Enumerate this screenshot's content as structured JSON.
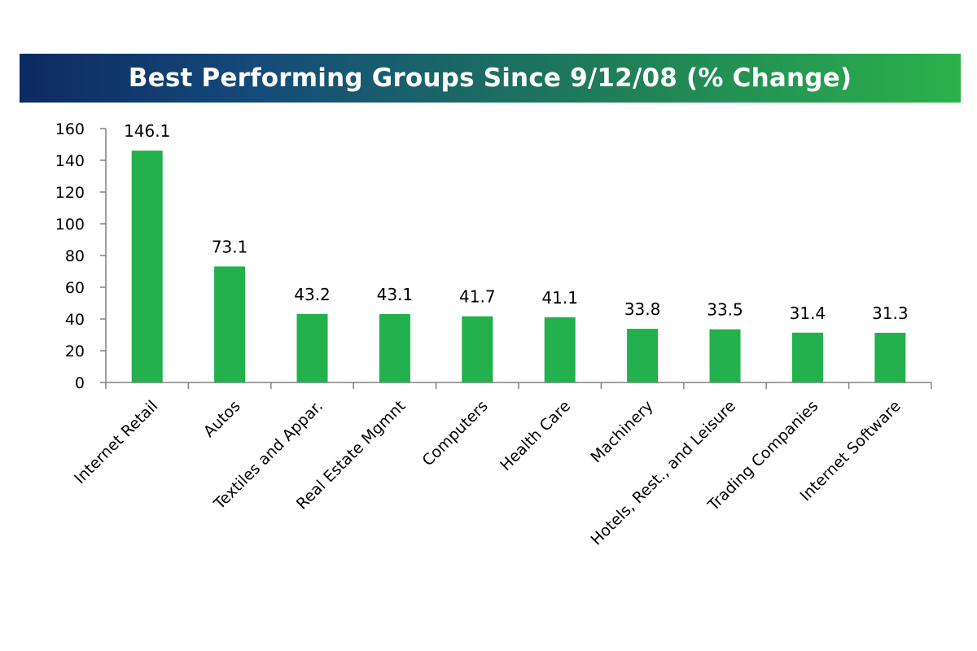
{
  "chart_data": {
    "type": "bar",
    "title": "Best Performing Groups Since 9/12/08 (% Change)",
    "xlabel": "",
    "ylabel": "",
    "categories": [
      "Internet Retail",
      "Autos",
      "Textiles and Appar.",
      "Real Estate  Mgmnt",
      "Computers",
      "Health Care",
      "Machinery",
      "Hotels, Rest., and Leisure",
      "Trading Companies",
      "Internet Software"
    ],
    "values": [
      146.1,
      73.1,
      43.2,
      43.1,
      41.7,
      41.1,
      33.8,
      33.5,
      31.4,
      31.3
    ],
    "value_labels": [
      "146.1",
      "73.1",
      "43.2",
      "43.1",
      "41.7",
      "41.1",
      "33.8",
      "33.5",
      "31.4",
      "31.3"
    ],
    "ylim": [
      0,
      160
    ],
    "yticks": [
      0,
      20,
      40,
      60,
      80,
      100,
      120,
      140,
      160
    ],
    "bar_color": "#22b14c",
    "grid": false,
    "legend": "none"
  }
}
